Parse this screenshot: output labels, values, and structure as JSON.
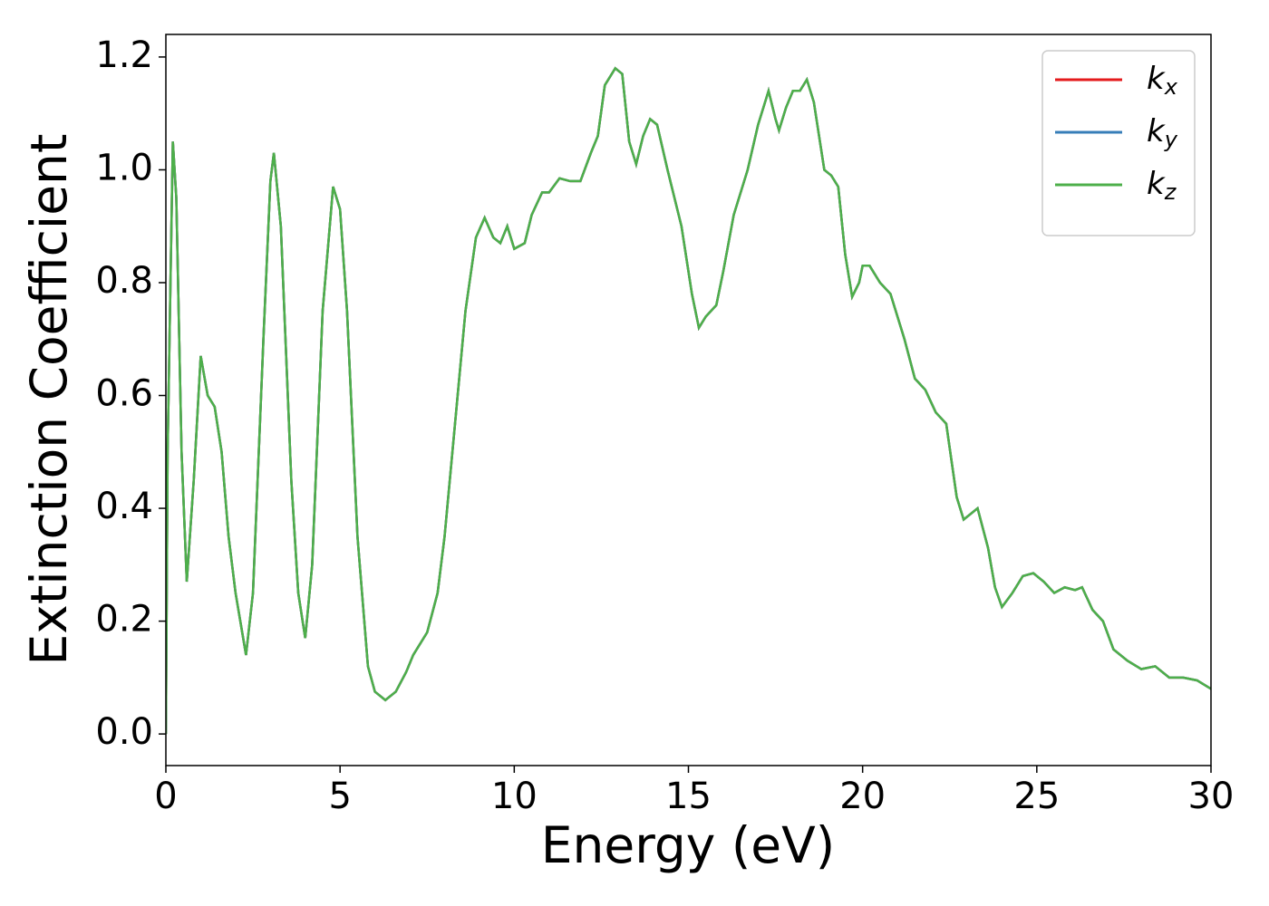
{
  "chart_data": {
    "type": "line",
    "x_label": "Energy (eV)",
    "y_label": "Extinction Coefficient",
    "xlim": [
      0,
      30
    ],
    "ylim": [
      -0.056,
      1.24
    ],
    "xticks": [
      0,
      5,
      10,
      15,
      20,
      25,
      30
    ],
    "yticks": [
      {
        "value": 0,
        "label": "0.0"
      },
      0.2,
      0.4,
      0.6,
      0.8,
      {
        "value": 1,
        "label": "1.0"
      },
      1.2
    ],
    "legend": "upper right",
    "x": [
      0,
      0.05,
      0.2,
      0.3,
      0.45,
      0.6,
      0.8,
      1.0,
      1.2,
      1.4,
      1.6,
      1.8,
      2.0,
      2.3,
      2.5,
      2.8,
      3.0,
      3.1,
      3.3,
      3.6,
      3.8,
      4.0,
      4.2,
      4.5,
      4.8,
      5.0,
      5.2,
      5.5,
      5.8,
      6.0,
      6.3,
      6.6,
      6.9,
      7.1,
      7.5,
      7.8,
      8.0,
      8.3,
      8.6,
      8.9,
      9.15,
      9.4,
      9.6,
      9.8,
      10.0,
      10.3,
      10.5,
      10.8,
      11.0,
      11.3,
      11.6,
      11.9,
      12.2,
      12.4,
      12.6,
      12.9,
      13.1,
      13.3,
      13.5,
      13.7,
      13.9,
      14.1,
      14.4,
      14.8,
      15.1,
      15.3,
      15.5,
      15.8,
      16.0,
      16.3,
      16.7,
      17.0,
      17.3,
      17.5,
      17.6,
      17.8,
      18.0,
      18.2,
      18.4,
      18.6,
      18.9,
      19.1,
      19.3,
      19.5,
      19.7,
      19.9,
      20.0,
      20.2,
      20.5,
      20.8,
      21.2,
      21.5,
      21.8,
      22.1,
      22.4,
      22.7,
      22.9,
      23.3,
      23.6,
      23.8,
      24.0,
      24.3,
      24.6,
      24.9,
      25.2,
      25.5,
      25.8,
      26.1,
      26.3,
      26.6,
      26.9,
      27.2,
      27.6,
      28.0,
      28.4,
      28.8,
      29.2,
      29.6,
      30
    ],
    "series": [
      {
        "name": "kx",
        "color": "#e41a1c",
        "values": [
          0,
          0.5,
          1.05,
          0.95,
          0.5,
          0.27,
          0.45,
          0.67,
          0.6,
          0.58,
          0.5,
          0.35,
          0.25,
          0.14,
          0.25,
          0.7,
          0.98,
          1.03,
          0.9,
          0.45,
          0.25,
          0.17,
          0.3,
          0.75,
          0.97,
          0.93,
          0.75,
          0.35,
          0.12,
          0.075,
          0.06,
          0.075,
          0.11,
          0.14,
          0.18,
          0.25,
          0.35,
          0.55,
          0.75,
          0.88,
          0.915,
          0.88,
          0.87,
          0.9,
          0.86,
          0.87,
          0.92,
          0.96,
          0.96,
          0.985,
          0.98,
          0.98,
          1.03,
          1.06,
          1.15,
          1.18,
          1.17,
          1.05,
          1.01,
          1.06,
          1.09,
          1.08,
          1.0,
          0.9,
          0.78,
          0.72,
          0.74,
          0.76,
          0.82,
          0.92,
          1.0,
          1.08,
          1.14,
          1.09,
          1.07,
          1.11,
          1.14,
          1.14,
          1.16,
          1.12,
          1.0,
          0.99,
          0.97,
          0.85,
          0.775,
          0.8,
          0.83,
          0.83,
          0.8,
          0.78,
          0.7,
          0.63,
          0.61,
          0.57,
          0.55,
          0.42,
          0.38,
          0.4,
          0.33,
          0.26,
          0.225,
          0.25,
          0.28,
          0.285,
          0.27,
          0.25,
          0.26,
          0.255,
          0.26,
          0.22,
          0.2,
          0.15,
          0.13,
          0.115,
          0.12,
          0.1,
          0.1,
          0.095,
          0.08
        ]
      },
      {
        "name": "ky",
        "color": "#377eb8",
        "values": [
          0,
          0.5,
          1.05,
          0.95,
          0.5,
          0.27,
          0.45,
          0.67,
          0.6,
          0.58,
          0.5,
          0.35,
          0.25,
          0.14,
          0.25,
          0.7,
          0.98,
          1.03,
          0.9,
          0.45,
          0.25,
          0.17,
          0.3,
          0.75,
          0.97,
          0.93,
          0.75,
          0.35,
          0.12,
          0.075,
          0.06,
          0.075,
          0.11,
          0.14,
          0.18,
          0.25,
          0.35,
          0.55,
          0.75,
          0.88,
          0.915,
          0.88,
          0.87,
          0.9,
          0.86,
          0.87,
          0.92,
          0.96,
          0.96,
          0.985,
          0.98,
          0.98,
          1.03,
          1.06,
          1.15,
          1.18,
          1.17,
          1.05,
          1.01,
          1.06,
          1.09,
          1.08,
          1.0,
          0.9,
          0.78,
          0.72,
          0.74,
          0.76,
          0.82,
          0.92,
          1.0,
          1.08,
          1.14,
          1.09,
          1.07,
          1.11,
          1.14,
          1.14,
          1.16,
          1.12,
          1.0,
          0.99,
          0.97,
          0.85,
          0.775,
          0.8,
          0.83,
          0.83,
          0.8,
          0.78,
          0.7,
          0.63,
          0.61,
          0.57,
          0.55,
          0.42,
          0.38,
          0.4,
          0.33,
          0.26,
          0.225,
          0.25,
          0.28,
          0.285,
          0.27,
          0.25,
          0.26,
          0.255,
          0.26,
          0.22,
          0.2,
          0.15,
          0.13,
          0.115,
          0.12,
          0.1,
          0.1,
          0.095,
          0.08
        ]
      },
      {
        "name": "kz",
        "color": "#4daf4a",
        "values": [
          0,
          0.5,
          1.05,
          0.95,
          0.5,
          0.27,
          0.45,
          0.67,
          0.6,
          0.58,
          0.5,
          0.35,
          0.25,
          0.14,
          0.25,
          0.7,
          0.98,
          1.03,
          0.9,
          0.45,
          0.25,
          0.17,
          0.3,
          0.75,
          0.97,
          0.93,
          0.75,
          0.35,
          0.12,
          0.075,
          0.06,
          0.075,
          0.11,
          0.14,
          0.18,
          0.25,
          0.35,
          0.55,
          0.75,
          0.88,
          0.915,
          0.88,
          0.87,
          0.9,
          0.86,
          0.87,
          0.92,
          0.96,
          0.96,
          0.985,
          0.98,
          0.98,
          1.03,
          1.06,
          1.15,
          1.18,
          1.17,
          1.05,
          1.01,
          1.06,
          1.09,
          1.08,
          1.0,
          0.9,
          0.78,
          0.72,
          0.74,
          0.76,
          0.82,
          0.92,
          1.0,
          1.08,
          1.14,
          1.09,
          1.07,
          1.11,
          1.14,
          1.14,
          1.16,
          1.12,
          1.0,
          0.99,
          0.97,
          0.85,
          0.775,
          0.8,
          0.83,
          0.83,
          0.8,
          0.78,
          0.7,
          0.63,
          0.61,
          0.57,
          0.55,
          0.42,
          0.38,
          0.4,
          0.33,
          0.26,
          0.225,
          0.25,
          0.28,
          0.285,
          0.27,
          0.25,
          0.26,
          0.255,
          0.26,
          0.22,
          0.2,
          0.15,
          0.13,
          0.115,
          0.12,
          0.1,
          0.1,
          0.095,
          0.08
        ]
      }
    ]
  }
}
